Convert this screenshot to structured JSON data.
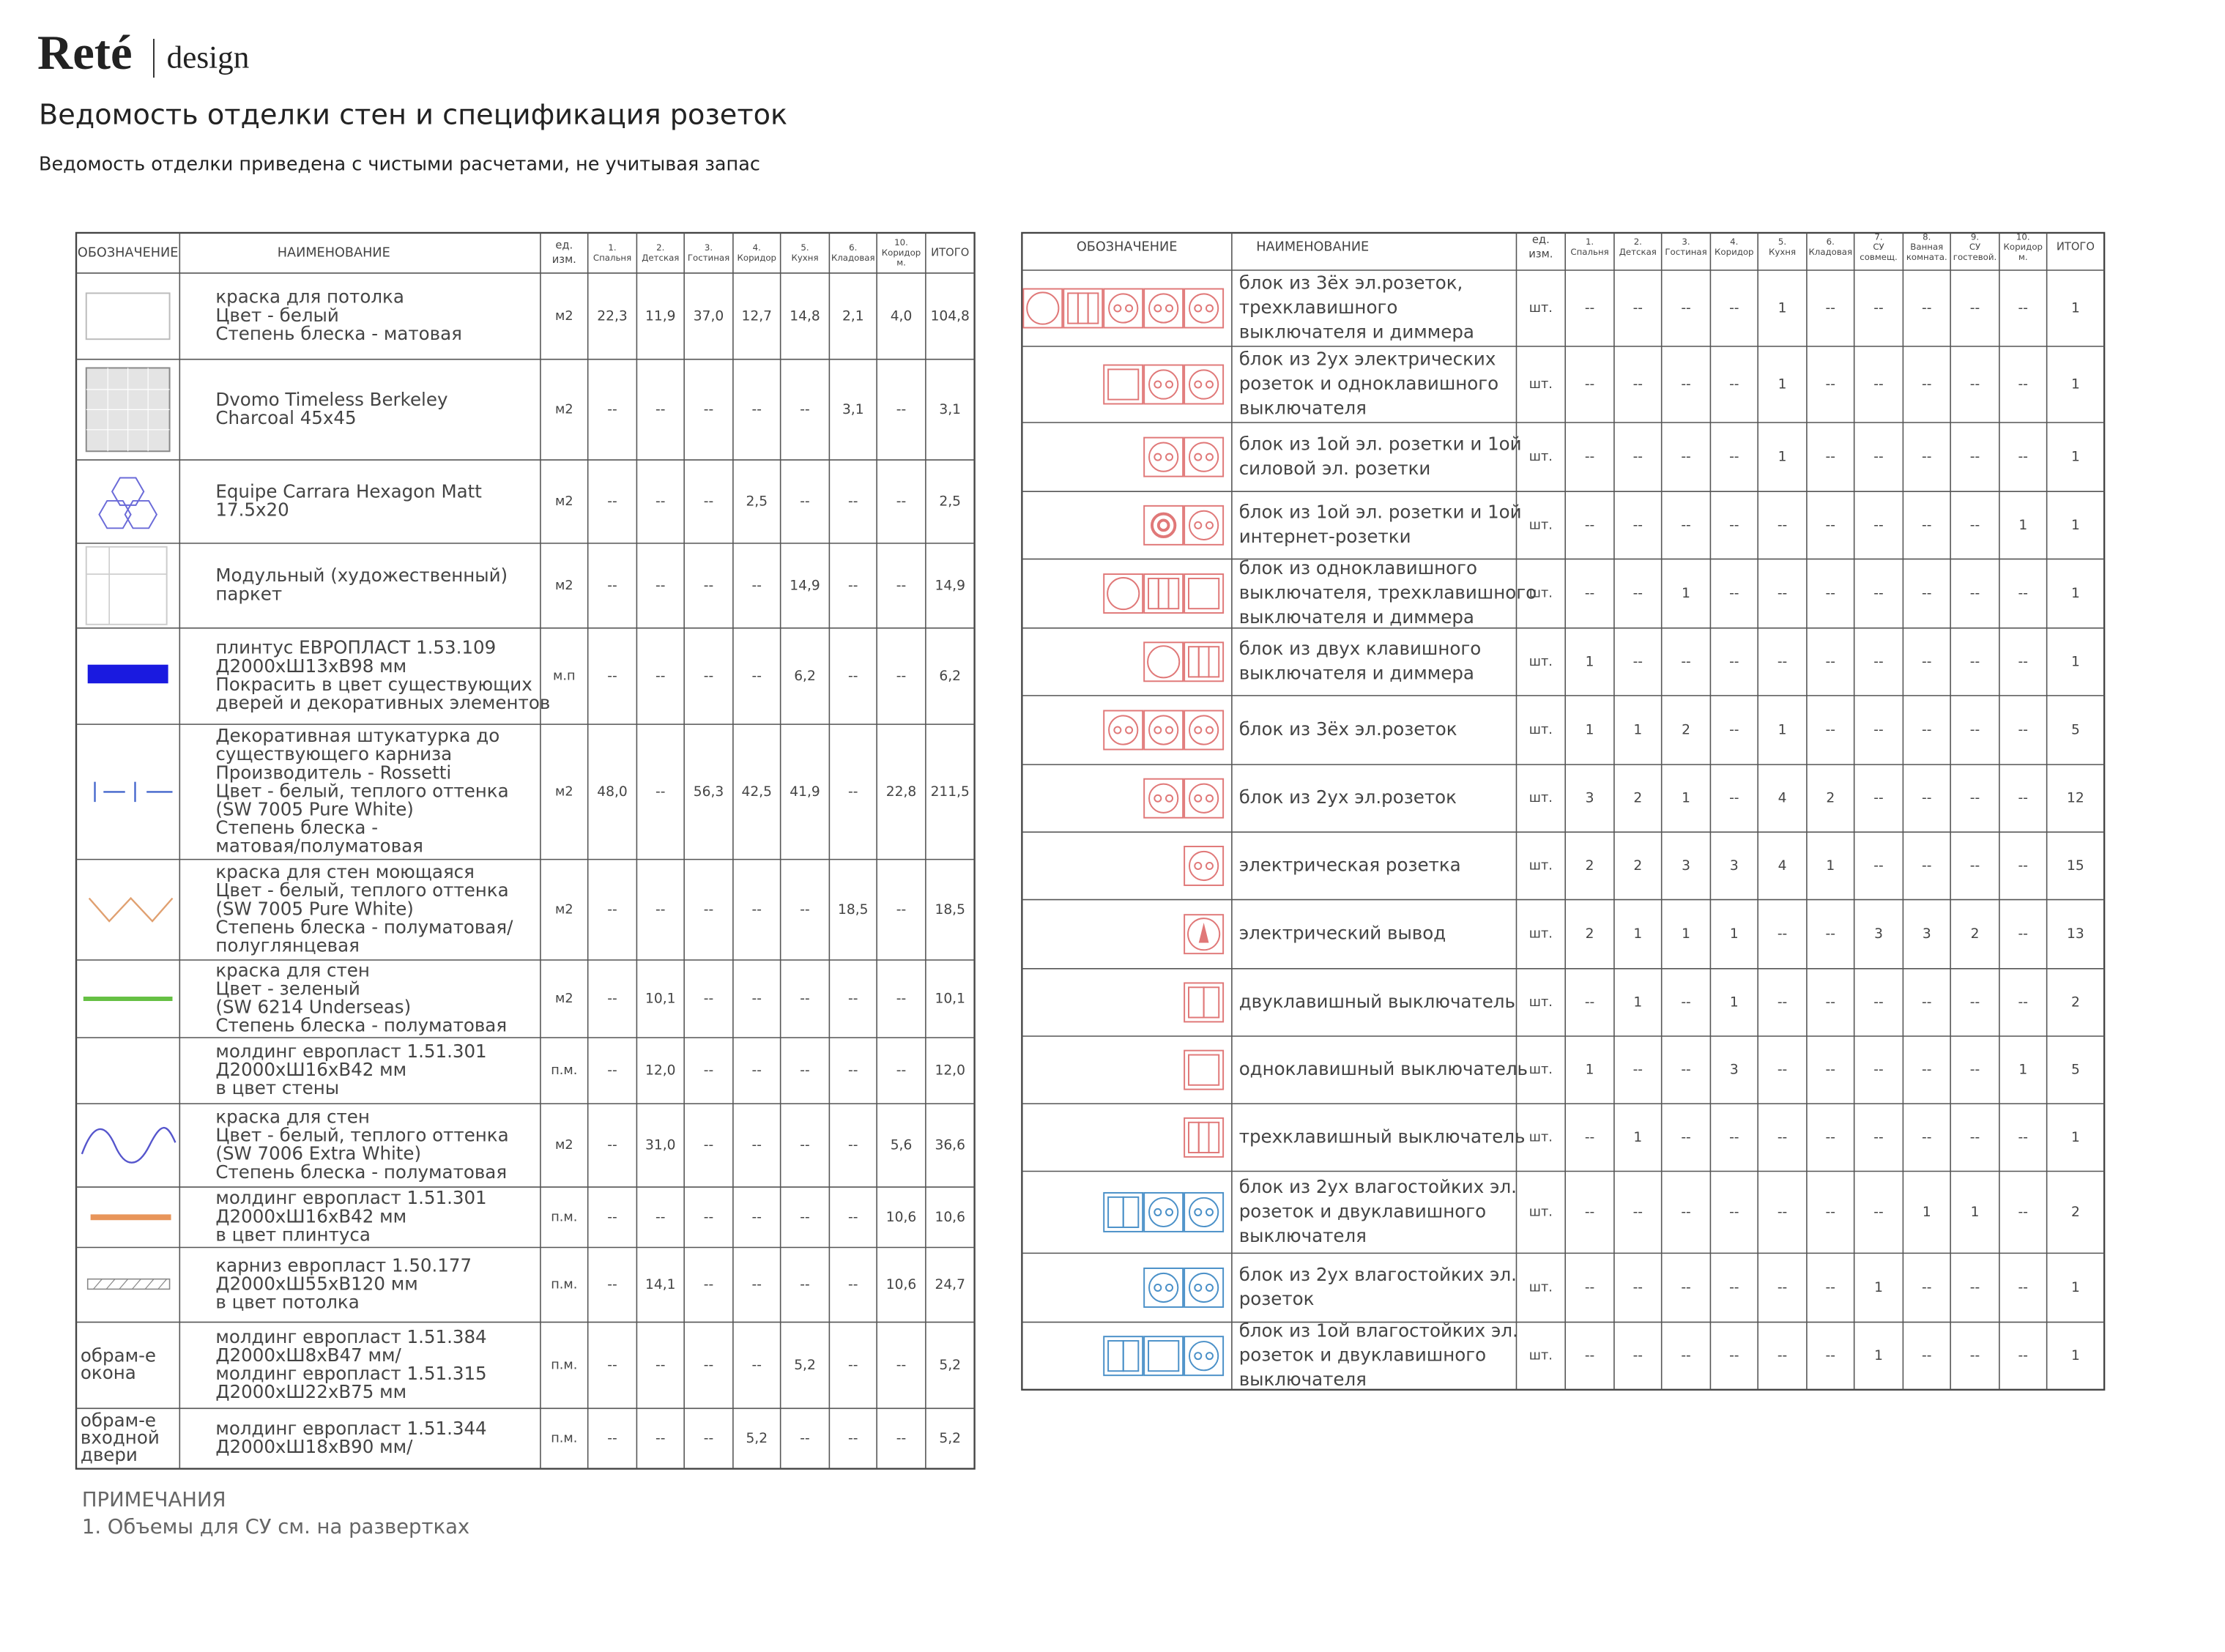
{
  "header": {
    "logo": "Reté",
    "logo_sub": "design",
    "title": "Ведомость отделки стен и спецификация розеток",
    "subtitle": "Ведомость отделки приведена с чистыми расчетами, не учитывая запас"
  },
  "finishes": {
    "columns": [
      [
        "ОБОЗНАЧЕНИЕ"
      ],
      [
        "НАИМЕНОВАНИЕ"
      ],
      [
        "ед.",
        "изм."
      ],
      [
        "1.",
        "Спальня"
      ],
      [
        "2.",
        "Детская"
      ],
      [
        "3.",
        "Гостиная"
      ],
      [
        "4.",
        "Коридор"
      ],
      [
        "5.",
        "Кухня"
      ],
      [
        "6.",
        "Кладовая"
      ],
      [
        "10.",
        "Коридор",
        "м."
      ],
      [
        "ИТОГО"
      ]
    ],
    "rows": [
      {
        "name": [
          "краска для потолка",
          "Цвет - белый",
          "Степень блеска - матовая"
        ],
        "unit": "м2",
        "values": [
          "22,3",
          "11,9",
          "37,0",
          "12,7",
          "14,8",
          "2,1",
          "4,0"
        ],
        "total": "104,8"
      },
      {
        "name": [
          "Dvomo Timeless Berkeley",
          "Charcoal 45x45"
        ],
        "unit": "м2",
        "values": [
          "--",
          "--",
          "--",
          "--",
          "--",
          "3,1",
          "--"
        ],
        "total": "3,1"
      },
      {
        "name": [
          "Equipe Carrara Hexagon Matt",
          "17.5x20"
        ],
        "unit": "м2",
        "values": [
          "--",
          "--",
          "--",
          "2,5",
          "--",
          "--",
          "--"
        ],
        "total": "2,5"
      },
      {
        "name": [
          "Модульный (художественный)",
          "паркет"
        ],
        "unit": "м2",
        "values": [
          "--",
          "--",
          "--",
          "--",
          "14,9",
          "--",
          "--"
        ],
        "total": "14,9"
      },
      {
        "name": [
          "плинтус ЕВРОПЛАСТ 1.53.109",
          "Д2000хШ13хВ98 мм",
          "Покрасить в цвет существующих",
          "дверей и декоративных элементов"
        ],
        "unit": "м.п",
        "values": [
          "--",
          "--",
          "--",
          "--",
          "6,2",
          "--",
          "--"
        ],
        "total": "6,2"
      },
      {
        "name": [
          "Декоративная штукатурка до",
          "существующего карниза",
          "Производитель - Rossetti",
          "Цвет - белый, теплого оттенка",
          "(SW 7005 Pure White)",
          "Степень блеска -",
          "матовая/полуматовая"
        ],
        "unit": "м2",
        "values": [
          "48,0",
          "--",
          "56,3",
          "42,5",
          "41,9",
          "--",
          "22,8"
        ],
        "total": "211,5"
      },
      {
        "name": [
          "краска для стен моющаяся",
          "Цвет - белый, теплого оттенка",
          "(SW 7005 Pure White)",
          " Степень блеска - полуматовая/",
          " полуглянцевая"
        ],
        "unit": "м2",
        "values": [
          "--",
          "--",
          "--",
          "--",
          "--",
          "18,5",
          "--"
        ],
        "total": "18,5"
      },
      {
        "name": [
          "краска для стен",
          "Цвет - зеленый",
          "(SW 6214 Underseas)",
          "Степень блеска - полуматовая"
        ],
        "unit": "м2",
        "values": [
          "--",
          "10,1",
          "--",
          "--",
          "--",
          "--",
          "--"
        ],
        "total": "10,1"
      },
      {
        "name": [
          "молдинг европласт 1.51.301",
          "Д2000хШ16хВ42 мм",
          "в цвет стены"
        ],
        "unit": "п.м.",
        "values": [
          "--",
          "12,0",
          "--",
          "--",
          "--",
          "--",
          "--"
        ],
        "total": "12,0"
      },
      {
        "name": [
          "краска для стен",
          "Цвет - белый, теплого оттенка",
          "(SW 7006 Extra White)",
          "Степень блеска - полуматовая"
        ],
        "unit": "м2",
        "values": [
          "--",
          "31,0",
          "--",
          "--",
          "--",
          "--",
          "5,6"
        ],
        "total": "36,6"
      },
      {
        "name": [
          "молдинг европласт 1.51.301",
          "Д2000хШ16хВ42 мм",
          "в цвет плинтуса"
        ],
        "unit": "п.м.",
        "values": [
          "--",
          "--",
          "--",
          "--",
          "--",
          "--",
          "10,6"
        ],
        "total": "10,6"
      },
      {
        "name": [
          "карниз европласт 1.50.177",
          "Д2000хШ55хВ120 мм",
          "в цвет потолка"
        ],
        "unit": "п.м.",
        "values": [
          "--",
          "14,1",
          "--",
          "--",
          "--",
          "--",
          "10,6"
        ],
        "total": "24,7"
      },
      {
        "designation": [
          "обрам-е",
          "окона"
        ],
        "name": [
          "молдинг европласт 1.51.384",
          "Д2000хШ8хВ47 мм/",
          "молдинг европласт 1.51.315",
          "Д2000хШ22хВ75 мм"
        ],
        "unit": "п.м.",
        "values": [
          "--",
          "--",
          "--",
          "--",
          "5,2",
          "--",
          "--"
        ],
        "total": "5,2"
      },
      {
        "designation": [
          "обрам-е",
          "входной",
          "двери"
        ],
        "name": [
          "молдинг европласт 1.51.344",
          "Д2000хШ18хВ90 мм/"
        ],
        "unit": "п.м.",
        "values": [
          "--",
          "--",
          "--",
          "5,2",
          "--",
          "--",
          "--"
        ],
        "total": "5,2"
      }
    ]
  },
  "sockets": {
    "columns": [
      [
        "ОБОЗНАЧЕНИЕ"
      ],
      [
        "НАИМЕНОВАНИЕ"
      ],
      [
        "ед.",
        "изм."
      ],
      [
        "1.",
        "Спальня"
      ],
      [
        "2.",
        "Детская"
      ],
      [
        "3.",
        "Гостиная"
      ],
      [
        "4.",
        "Коридор"
      ],
      [
        "5.",
        "Кухня"
      ],
      [
        "6.",
        "Кладовая"
      ],
      [
        "7.",
        "СУ",
        "совмещ."
      ],
      [
        "8.",
        "Ванная",
        "комната."
      ],
      [
        "9.",
        "СУ",
        "гостевой."
      ],
      [
        "10.",
        "Коридор",
        "м."
      ],
      [
        "ИТОГО"
      ]
    ],
    "rows": [
      {
        "name": [
          "блок из 3ёх эл.розеток,",
          "трехклавишного",
          "выключателя и диммера"
        ],
        "unit": "шт.",
        "values": [
          "--",
          "--",
          "--",
          "--",
          "1",
          "--",
          "--",
          "--",
          "--",
          "--"
        ],
        "total": "1"
      },
      {
        "name": [
          "блок из 2ух электрических",
          "розеток и одноклавишного",
          "выключателя"
        ],
        "unit": "шт.",
        "values": [
          "--",
          "--",
          "--",
          "--",
          "1",
          "--",
          "--",
          "--",
          "--",
          "--"
        ],
        "total": "1"
      },
      {
        "name": [
          "блок из 1ой эл. розетки  и 1ой",
          "силовой эл. розетки"
        ],
        "unit": "шт.",
        "values": [
          "--",
          "--",
          "--",
          "--",
          "1",
          "--",
          "--",
          "--",
          "--",
          "--"
        ],
        "total": "1"
      },
      {
        "name": [
          "блок из 1ой эл. розетки  и 1ой",
          "интернет-розетки"
        ],
        "unit": "шт.",
        "values": [
          "--",
          "--",
          "--",
          "--",
          "--",
          "--",
          "--",
          "--",
          "--",
          "1"
        ],
        "total": "1"
      },
      {
        "name": [
          "блок из одноклавишного",
          "выключателя, трехклавишного",
          "выключателя и диммера"
        ],
        "unit": "шт.",
        "values": [
          "--",
          "--",
          "1",
          "--",
          "--",
          "--",
          "--",
          "--",
          "--",
          "--"
        ],
        "total": "1"
      },
      {
        "name": [
          "блок из двух клавишного",
          "выключателя и диммера"
        ],
        "unit": "шт.",
        "values": [
          "1",
          "--",
          "--",
          "--",
          "--",
          "--",
          "--",
          "--",
          "--",
          "--"
        ],
        "total": "1"
      },
      {
        "name": [
          "блок из 3ёх эл.розеток"
        ],
        "unit": "шт.",
        "values": [
          "1",
          "1",
          "2",
          "--",
          "1",
          "--",
          "--",
          "--",
          "--",
          "--"
        ],
        "total": "5"
      },
      {
        "name": [
          "блок из 2ух эл.розеток"
        ],
        "unit": "шт.",
        "values": [
          "3",
          "2",
          "1",
          "--",
          "4",
          "2",
          "--",
          "--",
          "--",
          "--"
        ],
        "total": "12"
      },
      {
        "name": [
          "электрическая розетка"
        ],
        "unit": "шт.",
        "values": [
          "2",
          "2",
          "3",
          "3",
          "4",
          "1",
          "--",
          "--",
          "--",
          "--"
        ],
        "total": "15"
      },
      {
        "name": [
          "электрический вывод"
        ],
        "unit": "шт.",
        "values": [
          "2",
          "1",
          "1",
          "1",
          "--",
          "--",
          "3",
          "3",
          "2",
          "--"
        ],
        "total": "13"
      },
      {
        "name": [
          "двуклавишный выключатель"
        ],
        "unit": "шт.",
        "values": [
          "--",
          "1",
          "--",
          "1",
          "--",
          "--",
          "--",
          "--",
          "--",
          "--"
        ],
        "total": "2"
      },
      {
        "name": [
          "одноклавишный выключатель"
        ],
        "unit": "шт.",
        "values": [
          "1",
          "--",
          "--",
          "3",
          "--",
          "--",
          "--",
          "--",
          "--",
          "1"
        ],
        "total": "5"
      },
      {
        "name": [
          "трехклавишный выключатель"
        ],
        "unit": "шт.",
        "values": [
          "--",
          "1",
          "--",
          "--",
          "--",
          "--",
          "--",
          "--",
          "--",
          "--"
        ],
        "total": "1"
      },
      {
        "name": [
          "блок из 2ух влагостойких эл.",
          "розеток и двуклавишного",
          "выключателя"
        ],
        "unit": "шт.",
        "values": [
          "--",
          "--",
          "--",
          "--",
          "--",
          "--",
          "--",
          "1",
          "1",
          "--"
        ],
        "total": "2"
      },
      {
        "name": [
          "блок из 2ух влагостойких эл.",
          "розеток"
        ],
        "unit": "шт.",
        "values": [
          "--",
          "--",
          "--",
          "--",
          "--",
          "--",
          "1",
          "--",
          "--",
          "--"
        ],
        "total": "1"
      },
      {
        "name": [
          "блок из 1ой влагостойких эл.",
          "розеток и двуклавишного",
          "выключателя"
        ],
        "unit": "шт.",
        "values": [
          "--",
          "--",
          "--",
          "--",
          "--",
          "--",
          "1",
          "--",
          "--",
          "--"
        ],
        "total": "1"
      }
    ]
  },
  "notes": {
    "title": "ПРИМЕЧАНИЯ",
    "items": [
      "1. Объемы для СУ см. на развертках"
    ]
  }
}
